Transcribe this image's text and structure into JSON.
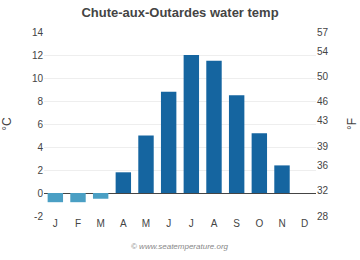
{
  "chart_data": {
    "type": "bar",
    "title": "Chute-aux-Outardes water temp",
    "categories": [
      "J",
      "F",
      "M",
      "A",
      "M",
      "J",
      "J",
      "A",
      "S",
      "O",
      "N",
      "D"
    ],
    "values": [
      -0.8,
      -0.8,
      -0.5,
      1.8,
      5.0,
      8.8,
      12.0,
      11.5,
      8.5,
      5.2,
      2.4,
      0.0
    ],
    "colors": [
      "#4a9fc4",
      "#4a9fc4",
      "#4a9fc4",
      "#1565a0",
      "#1565a0",
      "#1565a0",
      "#1565a0",
      "#1565a0",
      "#1565a0",
      "#1565a0",
      "#1565a0",
      "#1565a0"
    ],
    "ylabel": "°C",
    "y2label": "°F",
    "ylim": [
      -2,
      14
    ],
    "yticks": [
      -2,
      0,
      2,
      4,
      6,
      8,
      10,
      12,
      14
    ],
    "y2lim": [
      28,
      57
    ],
    "y2ticks": [
      28,
      32,
      36,
      39,
      43,
      46,
      50,
      54,
      57
    ],
    "grid": true,
    "annotations": [
      "© www.seatemperature.org"
    ]
  }
}
